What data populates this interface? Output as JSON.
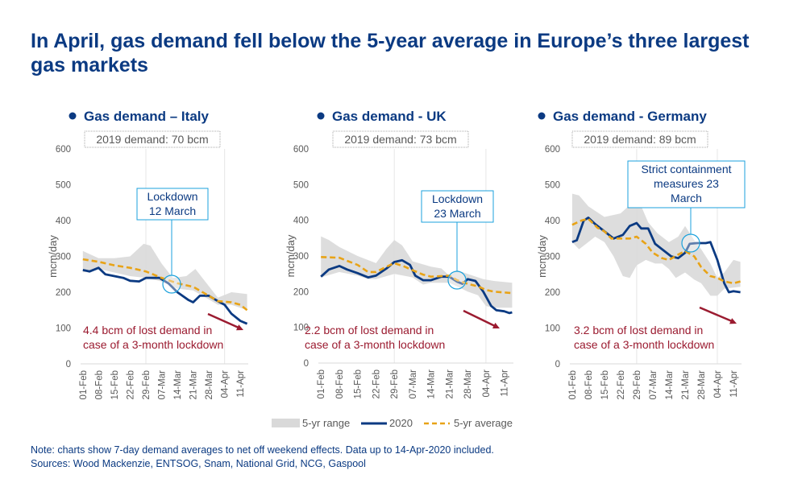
{
  "title": "In April, gas demand fell below the 5-year average in Europe’s three largest gas markets",
  "notes": [
    "Note: charts show 7-day demand averages to net off weekend effects. Data up to 14-Apr-2020 included.",
    "Sources: Wood Mackenzie, ENTSOG, Snam, National Grid, NCG, Gaspool"
  ],
  "colors": {
    "title": "#0b3a82",
    "series_2020": "#0b3a82",
    "avg": "#e8a317",
    "range": "#d9d9d9",
    "callout": "#1ba1dc",
    "annotation": "#9b1b30",
    "axis_text": "#595959"
  },
  "legend": {
    "range": "5-yr range",
    "s2020": "2020",
    "avg": "5-yr average",
    "placement": "bottom"
  },
  "chart_data": [
    {
      "type": "line",
      "title": "Gas demand – Italy",
      "subtitle": "2019 demand: 70 bcm",
      "ylabel": "mcm/day",
      "ylim": [
        0,
        600
      ],
      "yticks": [
        "0",
        "100",
        "200",
        "300",
        "400",
        "500",
        "600"
      ],
      "xticks": [
        "01-Feb",
        "08-Feb",
        "15-Feb",
        "22-Feb",
        "29-Feb",
        "07-Mar",
        "14-Mar",
        "21-Mar",
        "28-Mar",
        "04-Apr",
        "11-Apr"
      ],
      "callout": {
        "lines": [
          "Lockdown",
          "12 March"
        ],
        "date": "12-Mar"
      },
      "annotation": [
        "4.4 bcm of lost demand in",
        "case of a 3-month lockdown"
      ],
      "series_2020": [
        [
          "01-Feb",
          262
        ],
        [
          "04-Feb",
          258
        ],
        [
          "08-Feb",
          268
        ],
        [
          "11-Feb",
          250
        ],
        [
          "15-Feb",
          245
        ],
        [
          "19-Feb",
          240
        ],
        [
          "22-Feb",
          232
        ],
        [
          "26-Feb",
          230
        ],
        [
          "29-Feb",
          240
        ],
        [
          "06-Mar",
          240
        ],
        [
          "10-Mar",
          225
        ],
        [
          "14-Mar",
          200
        ],
        [
          "19-Mar",
          178
        ],
        [
          "21-Mar",
          172
        ],
        [
          "24-Mar",
          190
        ],
        [
          "28-Mar",
          190
        ],
        [
          "01-Apr",
          175
        ],
        [
          "04-Apr",
          165
        ],
        [
          "07-Apr",
          140
        ],
        [
          "11-Apr",
          120
        ],
        [
          "14-Apr",
          112
        ]
      ],
      "avg": [
        [
          "01-Feb",
          292
        ],
        [
          "08-Feb",
          285
        ],
        [
          "15-Feb",
          275
        ],
        [
          "22-Feb",
          268
        ],
        [
          "29-Feb",
          258
        ],
        [
          "07-Mar",
          240
        ],
        [
          "14-Mar",
          225
        ],
        [
          "21-Mar",
          215
        ],
        [
          "28-Mar",
          190
        ],
        [
          "01-Apr",
          175
        ],
        [
          "07-Apr",
          172
        ],
        [
          "11-Apr",
          165
        ],
        [
          "14-Apr",
          150
        ]
      ],
      "range_hi": [
        [
          "01-Feb",
          315
        ],
        [
          "08-Feb",
          295
        ],
        [
          "15-Feb",
          295
        ],
        [
          "22-Feb",
          300
        ],
        [
          "28-Feb",
          335
        ],
        [
          "02-Mar",
          330
        ],
        [
          "07-Mar",
          280
        ],
        [
          "12-Mar",
          240
        ],
        [
          "18-Mar",
          245
        ],
        [
          "22-Mar",
          265
        ],
        [
          "27-Mar",
          225
        ],
        [
          "01-Apr",
          185
        ],
        [
          "07-Apr",
          200
        ],
        [
          "14-Apr",
          195
        ]
      ],
      "range_lo": [
        [
          "01-Feb",
          255
        ],
        [
          "08-Feb",
          265
        ],
        [
          "15-Feb",
          255
        ],
        [
          "22-Feb",
          245
        ],
        [
          "29-Feb",
          240
        ],
        [
          "07-Mar",
          230
        ],
        [
          "14-Mar",
          210
        ],
        [
          "21-Mar",
          205
        ],
        [
          "28-Mar",
          180
        ],
        [
          "01-Apr",
          165
        ],
        [
          "07-Apr",
          165
        ],
        [
          "14-Apr",
          150
        ]
      ]
    },
    {
      "type": "line",
      "title": "Gas demand - UK",
      "subtitle": "2019 demand: 73 bcm",
      "ylabel": "mcm/day",
      "ylim": [
        0,
        600
      ],
      "yticks": [
        "0",
        "100",
        "200",
        "300",
        "400",
        "500",
        "600"
      ],
      "xticks": [
        "01-Feb",
        "08-Feb",
        "15-Feb",
        "22-Feb",
        "29-Feb",
        "07-Mar",
        "14-Mar",
        "21-Mar",
        "28-Mar",
        "04-Apr",
        "11-Apr"
      ],
      "callout": {
        "lines": [
          "Lockdown",
          "23 March"
        ],
        "date": "23-Mar"
      },
      "annotation": [
        "2.2 bcm of lost demand in",
        "case of a 3-month lockdown"
      ],
      "series_2020": [
        [
          "01-Feb",
          242
        ],
        [
          "04-Feb",
          262
        ],
        [
          "08-Feb",
          272
        ],
        [
          "11-Feb",
          262
        ],
        [
          "15-Feb",
          252
        ],
        [
          "19-Feb",
          240
        ],
        [
          "22-Feb",
          245
        ],
        [
          "26-Feb",
          265
        ],
        [
          "29-Feb",
          283
        ],
        [
          "03-Mar",
          288
        ],
        [
          "06-Mar",
          275
        ],
        [
          "08-Mar",
          245
        ],
        [
          "11-Mar",
          232
        ],
        [
          "14-Mar",
          232
        ],
        [
          "18-Mar",
          242
        ],
        [
          "21-Mar",
          242
        ],
        [
          "24-Mar",
          228
        ],
        [
          "26-Mar",
          222
        ],
        [
          "28-Mar",
          235
        ],
        [
          "31-Mar",
          230
        ],
        [
          "03-Apr",
          200
        ],
        [
          "06-Apr",
          160
        ],
        [
          "08-Apr",
          148
        ],
        [
          "11-Apr",
          145
        ],
        [
          "13-Apr",
          140
        ],
        [
          "14-Apr",
          142
        ]
      ],
      "avg": [
        [
          "01-Feb",
          297
        ],
        [
          "08-Feb",
          295
        ],
        [
          "15-Feb",
          275
        ],
        [
          "19-Feb",
          255
        ],
        [
          "22-Feb",
          255
        ],
        [
          "26-Feb",
          270
        ],
        [
          "29-Feb",
          280
        ],
        [
          "04-Mar",
          270
        ],
        [
          "07-Mar",
          260
        ],
        [
          "11-Mar",
          248
        ],
        [
          "14-Mar",
          242
        ],
        [
          "21-Mar",
          245
        ],
        [
          "24-Mar",
          232
        ],
        [
          "28-Mar",
          222
        ],
        [
          "01-Apr",
          215
        ],
        [
          "04-Apr",
          205
        ],
        [
          "07-Apr",
          200
        ],
        [
          "14-Apr",
          196
        ]
      ],
      "range_hi": [
        [
          "01-Feb",
          355
        ],
        [
          "04-Feb",
          345
        ],
        [
          "08-Feb",
          325
        ],
        [
          "15-Feb",
          300
        ],
        [
          "22-Feb",
          280
        ],
        [
          "26-Feb",
          320
        ],
        [
          "29-Feb",
          345
        ],
        [
          "03-Mar",
          330
        ],
        [
          "07-Mar",
          285
        ],
        [
          "14-Mar",
          270
        ],
        [
          "18-Mar",
          265
        ],
        [
          "21-Mar",
          245
        ],
        [
          "24-Mar",
          260
        ],
        [
          "28-Mar",
          250
        ],
        [
          "03-Apr",
          235
        ],
        [
          "07-Apr",
          230
        ],
        [
          "14-Apr",
          225
        ]
      ],
      "range_lo": [
        [
          "01-Feb",
          240
        ],
        [
          "08-Feb",
          255
        ],
        [
          "15-Feb",
          245
        ],
        [
          "19-Feb",
          235
        ],
        [
          "22-Feb",
          235
        ],
        [
          "29-Feb",
          250
        ],
        [
          "07-Mar",
          240
        ],
        [
          "11-Mar",
          220
        ],
        [
          "14-Mar",
          225
        ],
        [
          "21-Mar",
          225
        ],
        [
          "24-Mar",
          215
        ],
        [
          "28-Mar",
          200
        ],
        [
          "01-Apr",
          190
        ],
        [
          "04-Apr",
          160
        ],
        [
          "07-Apr",
          155
        ],
        [
          "14-Apr",
          155
        ]
      ]
    },
    {
      "type": "line",
      "title": "Gas demand - Germany",
      "subtitle": "2019 demand: 89 bcm",
      "ylabel": "mcm/day",
      "ylim": [
        0,
        600
      ],
      "yticks": [
        "0",
        "100",
        "200",
        "300",
        "400",
        "500",
        "600"
      ],
      "xticks": [
        "01-Feb",
        "08-Feb",
        "15-Feb",
        "22-Feb",
        "29-Feb",
        "07-Mar",
        "14-Mar",
        "21-Mar",
        "28-Mar",
        "04-Apr",
        "11-Apr"
      ],
      "callout": {
        "lines": [
          "Strict containment",
          "measures 23",
          "March"
        ],
        "date": "23-Mar"
      },
      "annotation": [
        "3.2 bcm of lost demand in",
        "case of a 3-month lockdown"
      ],
      "series_2020": [
        [
          "01-Feb",
          340
        ],
        [
          "03-Feb",
          345
        ],
        [
          "06-Feb",
          400
        ],
        [
          "08-Feb",
          408
        ],
        [
          "11-Feb",
          390
        ],
        [
          "15-Feb",
          370
        ],
        [
          "19-Feb",
          350
        ],
        [
          "23-Feb",
          360
        ],
        [
          "26-Feb",
          385
        ],
        [
          "29-Feb",
          393
        ],
        [
          "02-Mar",
          378
        ],
        [
          "05-Mar",
          378
        ],
        [
          "08-Mar",
          335
        ],
        [
          "11-Mar",
          320
        ],
        [
          "15-Mar",
          300
        ],
        [
          "18-Mar",
          295
        ],
        [
          "21-Mar",
          310
        ],
        [
          "23-Mar",
          335
        ],
        [
          "26-Mar",
          337
        ],
        [
          "30-Mar",
          337
        ],
        [
          "01-Apr",
          340
        ],
        [
          "04-Apr",
          290
        ],
        [
          "07-Apr",
          225
        ],
        [
          "09-Apr",
          200
        ],
        [
          "11-Apr",
          203
        ],
        [
          "14-Apr",
          200
        ]
      ],
      "avg": [
        [
          "01-Feb",
          388
        ],
        [
          "05-Feb",
          400
        ],
        [
          "08-Feb",
          405
        ],
        [
          "12-Feb",
          380
        ],
        [
          "15-Feb",
          370
        ],
        [
          "18-Feb",
          350
        ],
        [
          "22-Feb",
          350
        ],
        [
          "26-Feb",
          350
        ],
        [
          "29-Feb",
          355
        ],
        [
          "04-Mar",
          335
        ],
        [
          "07-Mar",
          310
        ],
        [
          "11-Mar",
          295
        ],
        [
          "14-Mar",
          290
        ],
        [
          "18-Mar",
          305
        ],
        [
          "21-Mar",
          315
        ],
        [
          "25-Mar",
          300
        ],
        [
          "28-Mar",
          270
        ],
        [
          "01-Apr",
          245
        ],
        [
          "04-Apr",
          240
        ],
        [
          "07-Apr",
          230
        ],
        [
          "11-Apr",
          225
        ],
        [
          "14-Apr",
          230
        ]
      ],
      "range_hi": [
        [
          "01-Feb",
          475
        ],
        [
          "04-Feb",
          470
        ],
        [
          "08-Feb",
          440
        ],
        [
          "15-Feb",
          410
        ],
        [
          "22-Feb",
          420
        ],
        [
          "28-Feb",
          455
        ],
        [
          "02-Mar",
          440
        ],
        [
          "05-Mar",
          395
        ],
        [
          "09-Mar",
          365
        ],
        [
          "14-Mar",
          340
        ],
        [
          "18-Mar",
          355
        ],
        [
          "21-Mar",
          385
        ],
        [
          "25-Mar",
          345
        ],
        [
          "28-Mar",
          320
        ],
        [
          "01-Apr",
          280
        ],
        [
          "04-Apr",
          240
        ],
        [
          "07-Apr",
          255
        ],
        [
          "11-Apr",
          290
        ],
        [
          "14-Apr",
          285
        ]
      ],
      "range_lo": [
        [
          "01-Feb",
          340
        ],
        [
          "04-Feb",
          320
        ],
        [
          "08-Feb",
          340
        ],
        [
          "11-Feb",
          355
        ],
        [
          "15-Feb",
          340
        ],
        [
          "19-Feb",
          300
        ],
        [
          "23-Feb",
          245
        ],
        [
          "26-Feb",
          240
        ],
        [
          "29-Feb",
          275
        ],
        [
          "04-Mar",
          290
        ],
        [
          "08-Mar",
          280
        ],
        [
          "11-Mar",
          280
        ],
        [
          "14-Mar",
          265
        ],
        [
          "17-Mar",
          240
        ],
        [
          "21-Mar",
          255
        ],
        [
          "25-Mar",
          235
        ],
        [
          "28-Mar",
          225
        ],
        [
          "01-Apr",
          190
        ],
        [
          "04-Apr",
          190
        ],
        [
          "07-Apr",
          210
        ],
        [
          "14-Apr",
          215
        ]
      ]
    }
  ]
}
